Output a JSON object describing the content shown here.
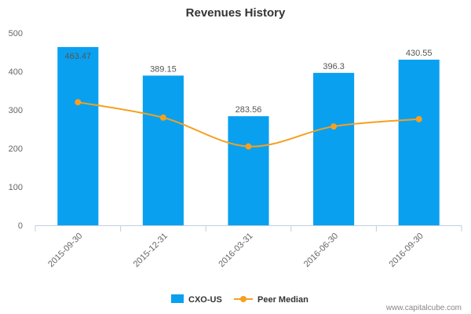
{
  "chart_data": {
    "type": "bar",
    "title": "Revenues History",
    "categories": [
      "2015-09-30",
      "2015-12-31",
      "2016-03-31",
      "2016-06-30",
      "2016-09-30"
    ],
    "series": [
      {
        "name": "CXO-US",
        "type": "bar",
        "color": "#0aa0f0",
        "values": [
          463.47,
          389.15,
          283.56,
          396.3,
          430.55
        ],
        "labels": [
          "463.47",
          "389.15",
          "283.56",
          "396.3",
          "430.55"
        ]
      },
      {
        "name": "Peer Median",
        "type": "line",
        "color": "#f5a01e",
        "values": [
          320,
          280,
          205,
          257,
          276
        ]
      }
    ],
    "ylim": [
      0,
      500
    ],
    "yticks": [
      "0",
      "100",
      "200",
      "300",
      "400",
      "500"
    ],
    "grid": false,
    "legend": "bottom-center"
  },
  "watermark": "www.capitalcube.com"
}
